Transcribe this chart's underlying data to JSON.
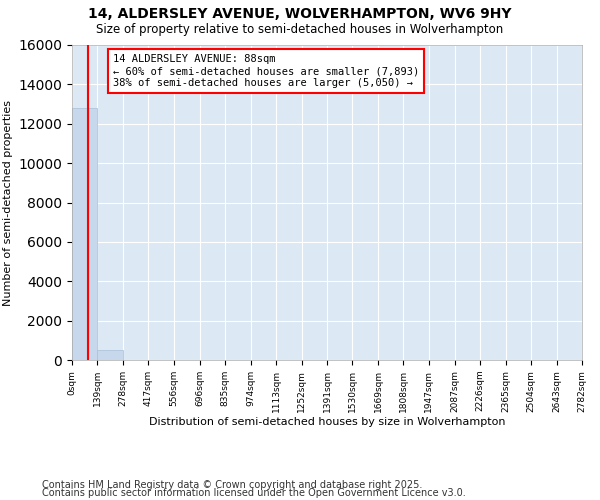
{
  "title": "14, ALDERSLEY AVENUE, WOLVERHAMPTON, WV6 9HY",
  "subtitle": "Size of property relative to semi-detached houses in Wolverhampton",
  "xlabel": "Distribution of semi-detached houses by size in Wolverhampton",
  "ylabel": "Number of semi-detached properties",
  "bar_color": "#c8d8ec",
  "bar_edge_color": "#a8c0d8",
  "property_line_color": "red",
  "property_size": 88,
  "property_label": "14 ALDERSLEY AVENUE: 88sqm",
  "pct_smaller": 60,
  "count_smaller": 7893,
  "pct_larger": 38,
  "count_larger": 5050,
  "annotation_box_color": "red",
  "bin_edges": [
    0,
    139,
    278,
    417,
    556,
    696,
    835,
    974,
    1113,
    1252,
    1391,
    1530,
    1669,
    1808,
    1947,
    2087,
    2226,
    2365,
    2504,
    2643,
    2782
  ],
  "bin_counts": [
    12800,
    500,
    10,
    5,
    3,
    2,
    1,
    1,
    0,
    0,
    0,
    0,
    0,
    0,
    0,
    0,
    0,
    0,
    0,
    0
  ],
  "ylim": [
    0,
    16000
  ],
  "yticks": [
    0,
    2000,
    4000,
    6000,
    8000,
    10000,
    12000,
    14000,
    16000
  ],
  "footnote1": "Contains HM Land Registry data © Crown copyright and database right 2025.",
  "footnote2": "Contains public sector information licensed under the Open Government Licence v3.0.",
  "figure_background": "#ffffff",
  "plot_background": "#dce8f4",
  "grid_color": "#ffffff",
  "title_fontsize": 10,
  "subtitle_fontsize": 8.5,
  "footnote_fontsize": 7
}
